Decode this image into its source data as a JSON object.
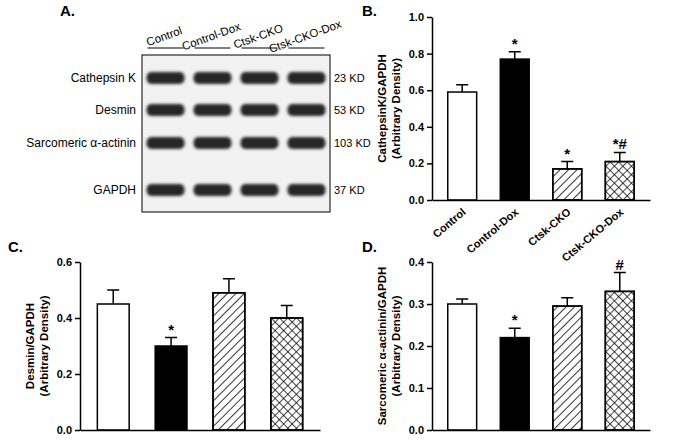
{
  "blot": {
    "panel": "A.",
    "lanes": [
      "Control",
      "Control-Dox",
      "Ctsk-CKO",
      "Ctsk-CKO-Dox"
    ],
    "rows": [
      {
        "protein": "Cathepsin K",
        "size": "23 KD"
      },
      {
        "protein": "Desmin",
        "size": "53 KD"
      },
      {
        "protein": "Sarcomeric α-actinin",
        "size": "103 KD"
      },
      {
        "protein": "GAPDH",
        "size": "37 KD"
      }
    ]
  },
  "chart_data": [
    {
      "type": "bar",
      "panel": "B.",
      "ylabel": [
        "CathepsinK/GAPDH",
        "(Arbitrary Density)"
      ],
      "categories": [
        "Control",
        "Control-Dox",
        "Ctsk-CKO",
        "Ctsk-CKO-Dox"
      ],
      "values": [
        0.59,
        0.77,
        0.17,
        0.21
      ],
      "error": [
        0.04,
        0.04,
        0.04,
        0.05
      ],
      "significance": [
        null,
        "*",
        "*",
        "*#"
      ],
      "colors": [
        "#ffffff",
        "#000000",
        "#ffffff",
        "#ffffff"
      ],
      "ylim": [
        0,
        1.0
      ],
      "yticks": [
        {
          "value": 0,
          "label": "0.0"
        },
        0.2,
        0.4,
        0.6,
        0.8,
        {
          "value": 1.0,
          "label": "1.0"
        }
      ]
    },
    {
      "type": "bar",
      "panel": "C.",
      "ylabel": [
        "Desmin/GAPDH",
        "(Arbitrary Density)"
      ],
      "categories": [
        null,
        null,
        null,
        null
      ],
      "tick_labels": "y",
      "values": [
        0.45,
        0.3,
        0.49,
        0.4
      ],
      "error": [
        0.05,
        0.03,
        0.05,
        0.045
      ],
      "significance": [
        null,
        "*",
        null,
        null
      ],
      "colors": [
        "#ffffff",
        "#000000",
        "#ffffff",
        "#ffffff"
      ],
      "ylim": [
        0,
        0.6
      ],
      "yticks": [
        {
          "value": 0,
          "label": "0.0"
        },
        0.2,
        0.4,
        0.6
      ]
    },
    {
      "type": "bar",
      "panel": "D.",
      "ylabel": [
        "Sarcomeric α-actinin/GAPDH",
        "(Arbitrary Density)"
      ],
      "categories": [
        null,
        null,
        null,
        null
      ],
      "tick_labels": "y",
      "values": [
        0.3,
        0.22,
        0.295,
        0.33
      ],
      "error": [
        0.012,
        0.022,
        0.02,
        0.045
      ],
      "significance": [
        null,
        "*",
        null,
        "#"
      ],
      "colors": [
        "#ffffff",
        "#000000",
        "#ffffff",
        "#ffffff"
      ],
      "ylim": [
        0,
        0.4
      ],
      "yticks": [
        {
          "value": 0,
          "label": "0.0"
        },
        0.1,
        0.2,
        0.3,
        0.4
      ]
    }
  ]
}
